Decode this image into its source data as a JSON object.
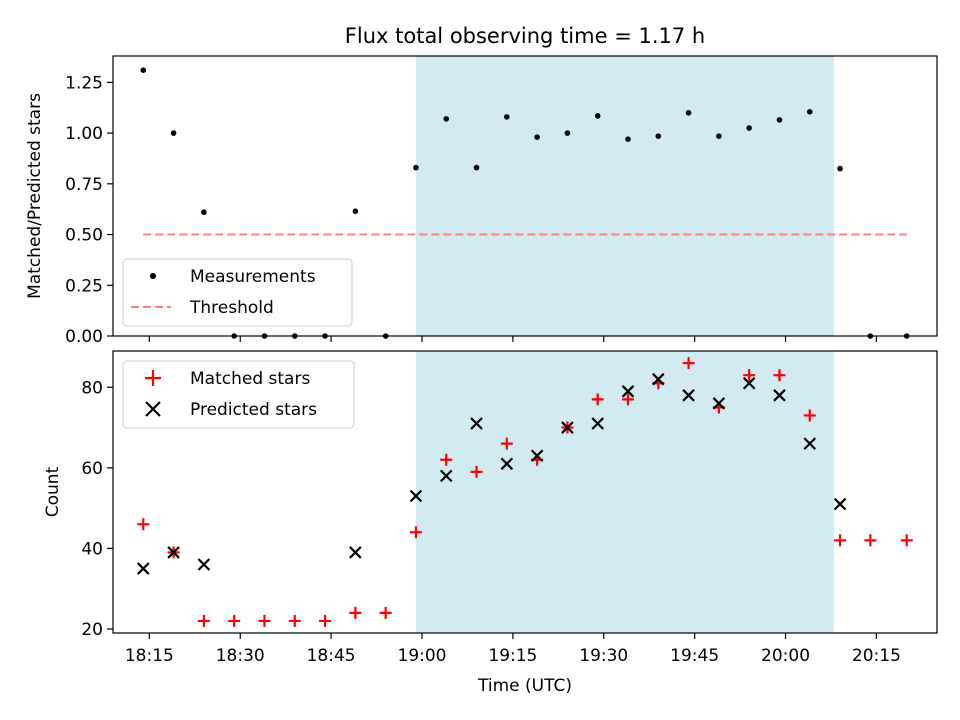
{
  "title": "Flux total observing time = 1.17 h",
  "colors": {
    "shade": "#add8e6",
    "threshold": "#ff7f7f",
    "matched": "#ff0000",
    "predicted": "#000000",
    "measurement": "#000000"
  },
  "chart_data": [
    {
      "type": "scatter",
      "ylabel": "Matched/Predicted stars",
      "xlabel": "",
      "ylim": [
        0,
        1.38
      ],
      "yticks": [
        0.0,
        0.25,
        0.5,
        0.75,
        1.0,
        1.25
      ],
      "ytick_labels": [
        "0.00",
        "0.25",
        "0.50",
        "0.75",
        "1.00",
        "1.25"
      ],
      "x_range": [
        "18:09",
        "20:25"
      ],
      "shaded_span": [
        "18:59",
        "20:08"
      ],
      "legend": {
        "location": "lower left",
        "entries": [
          "Measurements",
          "Threshold"
        ]
      },
      "series": [
        {
          "name": "Measurements",
          "marker": "dot",
          "x": [
            "18:14",
            "18:19",
            "18:24",
            "18:29",
            "18:34",
            "18:39",
            "18:44",
            "18:49",
            "18:54",
            "18:59",
            "19:04",
            "19:09",
            "19:14",
            "19:19",
            "19:24",
            "19:29",
            "19:34",
            "19:39",
            "19:44",
            "19:49",
            "19:54",
            "19:59",
            "20:04",
            "20:09",
            "20:14",
            "20:20"
          ],
          "y": [
            1.31,
            1.0,
            0.61,
            0.0,
            0.0,
            0.0,
            0.0,
            0.615,
            0.0,
            0.83,
            1.07,
            0.83,
            1.08,
            0.98,
            1.0,
            1.085,
            0.97,
            0.985,
            1.1,
            0.985,
            1.025,
            1.065,
            1.105,
            0.825,
            0.0,
            0.0
          ]
        },
        {
          "name": "Threshold",
          "marker": "dashed-line",
          "x": [
            "18:14",
            "20:20"
          ],
          "y": [
            0.5,
            0.5
          ]
        }
      ]
    },
    {
      "type": "scatter",
      "ylabel": "Count",
      "xlabel": "Time (UTC)",
      "ylim": [
        19,
        89
      ],
      "yticks": [
        20,
        40,
        60,
        80
      ],
      "ytick_labels": [
        "20",
        "40",
        "60",
        "80"
      ],
      "x_range": [
        "18:09",
        "20:25"
      ],
      "xticks": [
        "18:15",
        "18:30",
        "18:45",
        "19:00",
        "19:15",
        "19:30",
        "19:45",
        "20:00",
        "20:15"
      ],
      "shaded_span": [
        "18:59",
        "20:08"
      ],
      "legend": {
        "location": "upper left",
        "entries": [
          "Matched stars",
          "Predicted stars"
        ]
      },
      "series": [
        {
          "name": "Matched stars",
          "marker": "plus",
          "x": [
            "18:14",
            "18:19",
            "18:24",
            "18:29",
            "18:34",
            "18:39",
            "18:44",
            "18:49",
            "18:54",
            "18:59",
            "19:04",
            "19:09",
            "19:14",
            "19:19",
            "19:24",
            "19:29",
            "19:34",
            "19:39",
            "19:44",
            "19:49",
            "19:54",
            "19:59",
            "20:04",
            "20:09",
            "20:14",
            "20:20"
          ],
          "y": [
            46,
            39,
            22,
            22,
            22,
            22,
            22,
            24,
            24,
            44,
            62,
            59,
            66,
            62,
            70,
            77,
            77,
            81,
            86,
            75,
            83,
            83,
            73,
            42,
            42,
            42
          ]
        },
        {
          "name": "Predicted stars",
          "marker": "x",
          "x": [
            "18:14",
            "18:19",
            "18:24",
            "18:49",
            "18:59",
            "19:04",
            "19:09",
            "19:14",
            "19:19",
            "19:24",
            "19:29",
            "19:34",
            "19:39",
            "19:44",
            "19:49",
            "19:54",
            "19:59",
            "20:04",
            "20:09"
          ],
          "y": [
            35,
            39,
            36,
            39,
            53,
            58,
            71,
            61,
            63,
            70,
            71,
            79,
            82,
            78,
            76,
            81,
            78,
            66,
            51
          ]
        }
      ]
    }
  ]
}
